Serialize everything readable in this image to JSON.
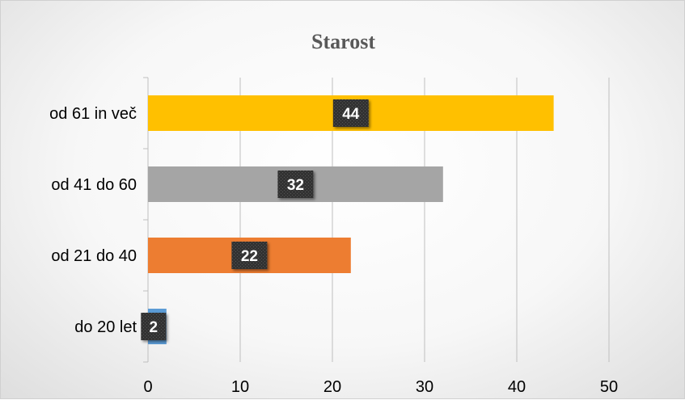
{
  "chart_data": {
    "type": "bar",
    "orientation": "horizontal",
    "title": "Starost",
    "categories": [
      "od 61 in več",
      "od 41 do 60",
      "od 21 do 40",
      "do 20 let"
    ],
    "values": [
      44,
      32,
      22,
      2
    ],
    "colors": [
      "#FFC000",
      "#A5A5A5",
      "#ED7D31",
      "#5B9BD5"
    ],
    "xlim": [
      0,
      50
    ],
    "x_ticks": [
      0,
      10,
      20,
      30,
      40,
      50
    ],
    "grid": true,
    "legend": "none",
    "data_labels": true,
    "xlabel": "",
    "ylabel": ""
  }
}
